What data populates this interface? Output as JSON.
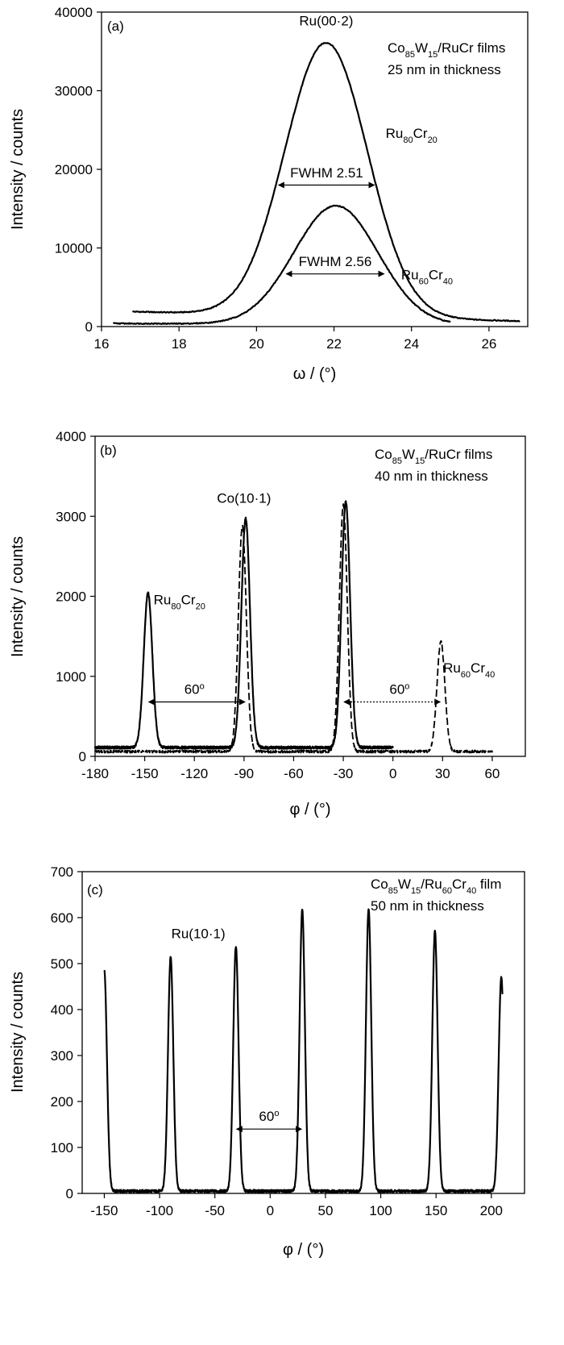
{
  "chart_data": [
    {
      "panel_id": "(a)",
      "type": "line",
      "xlabel": "ω / (°)",
      "ylabel": "Intensity / counts",
      "xlim": [
        16,
        27
      ],
      "ylim": [
        0,
        40000
      ],
      "xticks": [
        16,
        18,
        20,
        22,
        24,
        26
      ],
      "yticks": [
        0,
        10000,
        20000,
        30000,
        40000
      ],
      "legend_lines": [
        {
          "parts": [
            {
              "t": "Co"
            },
            {
              "t": "85",
              "sub": true
            },
            {
              "t": "W"
            },
            {
              "t": "15",
              "sub": true
            },
            {
              "t": "/RuCr films"
            }
          ]
        },
        {
          "parts": [
            {
              "t": "25 nm in thickness"
            }
          ]
        }
      ],
      "series": [
        {
          "name": "Ru80Cr20",
          "shape": "peak",
          "style": "solid",
          "x_range": [
            16.8,
            26.8
          ],
          "center": 21.8,
          "height": 34800,
          "fwhm": 2.51,
          "baseline": [
            1900,
            700
          ]
        },
        {
          "name": "Ru60Cr40",
          "shape": "peak",
          "style": "solid",
          "x_range": [
            16.3,
            25.0
          ],
          "center": 22.05,
          "height": 15100,
          "fwhm": 2.56,
          "baseline": [
            400,
            200
          ]
        }
      ],
      "annotations": [
        {
          "label_parts": [
            {
              "t": "Ru(00·2)"
            }
          ],
          "x": 21.8,
          "y": 38300
        },
        {
          "label_parts": [
            {
              "t": "Ru"
            },
            {
              "t": "80",
              "sub": true
            },
            {
              "t": "Cr"
            },
            {
              "t": "20",
              "sub": true
            }
          ],
          "x": 24.0,
          "y": 24000
        },
        {
          "label_parts": [
            {
              "t": "Ru"
            },
            {
              "t": "60",
              "sub": true
            },
            {
              "t": "Cr"
            },
            {
              "t": "40",
              "sub": true
            }
          ],
          "x": 24.4,
          "y": 6000
        }
      ],
      "spans": [
        {
          "label": "FWHM 2.51",
          "x0": 20.55,
          "x1": 23.06,
          "y": 18000,
          "style": "solid",
          "label_x": 21.81,
          "label_y": 19000
        },
        {
          "label": "FWHM 2.56",
          "x0": 20.75,
          "x1": 23.31,
          "y": 6700,
          "style": "solid",
          "label_x": 22.03,
          "label_y": 7700
        }
      ]
    },
    {
      "panel_id": "(b)",
      "type": "line",
      "xlabel": "φ / (°)",
      "ylabel": "Intensity / counts",
      "xlim": [
        -180,
        80
      ],
      "ylim": [
        0,
        4000
      ],
      "xticks": [
        -180,
        -150,
        -120,
        -90,
        -60,
        -30,
        0,
        30,
        60
      ],
      "yticks": [
        0,
        1000,
        2000,
        3000,
        4000
      ],
      "legend_lines": [
        {
          "parts": [
            {
              "t": "Co"
            },
            {
              "t": "85",
              "sub": true
            },
            {
              "t": "W"
            },
            {
              "t": "15",
              "sub": true
            },
            {
              "t": "/RuCr films"
            }
          ]
        },
        {
          "parts": [
            {
              "t": "40 nm in thickness"
            }
          ]
        }
      ],
      "series": [
        {
          "name": "Ru80Cr20",
          "shape": "peaks",
          "style": "solid",
          "x_range": [
            -180,
            0
          ],
          "baseline": 110,
          "width": 2.6,
          "peaks": [
            {
              "x": -148,
              "h": 2040
            },
            {
              "x": -89,
              "h": 2970
            },
            {
              "x": -28.5,
              "h": 3180
            }
          ]
        },
        {
          "name": "Ru60Cr40",
          "shape": "peaks",
          "style": "dashed",
          "x_range": [
            -180,
            60
          ],
          "baseline": 60,
          "width": 2.4,
          "peaks": [
            {
              "x": -91,
              "h": 2880
            },
            {
              "x": -30,
              "h": 3140
            },
            {
              "x": 29,
              "h": 1430
            }
          ]
        }
      ],
      "annotations": [
        {
          "label_parts": [
            {
              "t": "Co(10·1)"
            }
          ],
          "x": -90,
          "y": 3170
        },
        {
          "label_parts": [
            {
              "t": "Ru"
            },
            {
              "t": "80",
              "sub": true
            },
            {
              "t": "Cr"
            },
            {
              "t": "20",
              "sub": true
            }
          ],
          "x": -129,
          "y": 1900
        },
        {
          "label_parts": [
            {
              "t": "Ru"
            },
            {
              "t": "60",
              "sub": true
            },
            {
              "t": "Cr"
            },
            {
              "t": "40",
              "sub": true
            }
          ],
          "x": 46,
          "y": 1050
        }
      ],
      "spans": [
        {
          "label": "60",
          "label_sup": "o",
          "x0": -148,
          "x1": -89,
          "y": 680,
          "style": "solid",
          "label_x": -120,
          "label_y": 780
        },
        {
          "label": "60",
          "label_sup": "o",
          "x0": -30,
          "x1": 29,
          "y": 680,
          "style": "dotted",
          "label_x": 4,
          "label_y": 780
        }
      ]
    },
    {
      "panel_id": "(c)",
      "type": "line",
      "xlabel": "φ / (°)",
      "ylabel": "Intensity / counts",
      "xlim": [
        -170,
        230
      ],
      "ylim": [
        0,
        700
      ],
      "xticks": [
        -150,
        -100,
        -50,
        0,
        50,
        100,
        150,
        200
      ],
      "yticks": [
        0,
        100,
        200,
        300,
        400,
        500,
        600,
        700
      ],
      "legend_lines": [
        {
          "parts": [
            {
              "t": "Co"
            },
            {
              "t": "85",
              "sub": true
            },
            {
              "t": "W"
            },
            {
              "t": "15",
              "sub": true
            },
            {
              "t": "/Ru"
            },
            {
              "t": "60",
              "sub": true
            },
            {
              "t": "Cr"
            },
            {
              "t": "40",
              "sub": true
            },
            {
              "t": " film"
            }
          ]
        },
        {
          "parts": [
            {
              "t": "50 nm in thickness"
            }
          ]
        }
      ],
      "series": [
        {
          "name": "",
          "shape": "peaks",
          "style": "solid",
          "x_range": [
            -150,
            210
          ],
          "baseline": 5,
          "width": 2.4,
          "peaks": [
            {
              "x": -150,
              "h": 485
            },
            {
              "x": -90,
              "h": 515
            },
            {
              "x": -31,
              "h": 538
            },
            {
              "x": 29,
              "h": 617
            },
            {
              "x": 89,
              "h": 618
            },
            {
              "x": 149,
              "h": 570
            },
            {
              "x": 209,
              "h": 470
            }
          ]
        }
      ],
      "annotations": [
        {
          "label_parts": [
            {
              "t": "Ru(10·1)"
            }
          ],
          "x": -65,
          "y": 555
        }
      ],
      "spans": [
        {
          "label": "60",
          "label_sup": "o",
          "x0": -31,
          "x1": 29,
          "y": 140,
          "style": "solid",
          "label_x": -1,
          "label_y": 158
        }
      ]
    }
  ]
}
